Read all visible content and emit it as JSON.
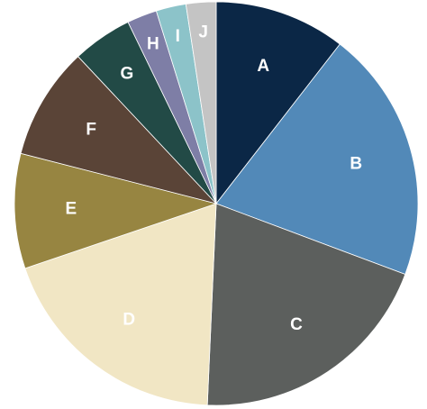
{
  "chart_data": {
    "type": "pie",
    "title": "",
    "legend": "none",
    "start_angle_deg": 0,
    "direction": "clockwise",
    "categories": [
      "A",
      "B",
      "C",
      "D",
      "E",
      "F",
      "G",
      "H",
      "I",
      "J"
    ],
    "values": [
      10.5,
      20.2,
      20.0,
      19.1,
      9.2,
      9.0,
      4.8,
      2.4,
      2.4,
      2.4
    ],
    "colors": [
      "#0b2746",
      "#5289b8",
      "#5c5f5d",
      "#f1e6c4",
      "#978541",
      "#5a4437",
      "#224a46",
      "#7e7ea6",
      "#8cc3c9",
      "#c4c4c4"
    ]
  }
}
